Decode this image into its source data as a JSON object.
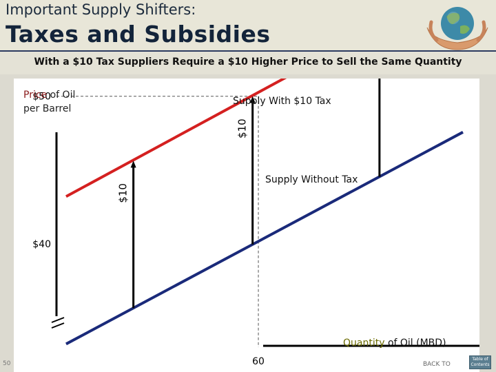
{
  "header": {
    "title_small": "Important Supply Shifters:",
    "title_big": "Taxes and Subsidies"
  },
  "subtitle": "With a $10 Tax Suppliers Require a $10 Higher Price to Sell the Same Quantity",
  "footer": {
    "page_number": "50",
    "back_to": "BACK TO",
    "toc_line1": "Table of",
    "toc_line2": "Contents"
  },
  "colors": {
    "supply_with_tax": "#d42020",
    "supply_without_tax": "#1a2a7a",
    "arrows": "#000000",
    "price_label_accent": "#8a1a1a",
    "quantity_label_accent": "#6b6b00"
  },
  "chart_data": {
    "type": "line",
    "ylabel_accent": "Price",
    "ylabel_rest1": " of Oil",
    "ylabel_rest2": "per Barrel",
    "xlabel_accent": "Quantity",
    "xlabel_rest": " of Oil (MBD)",
    "xlim": [
      49.5,
      71.5
    ],
    "ylim": [
      31.3,
      51.2
    ],
    "y_ticks": [
      {
        "value": 50,
        "label": "$50"
      },
      {
        "value": 40,
        "label": "$40"
      }
    ],
    "x_ticks": [
      {
        "value": 60,
        "label": "60"
      }
    ],
    "series": [
      {
        "name": "Supply With $10 Tax",
        "x": [
          50,
          66
        ],
        "y": [
          43.2,
          54.5
        ],
        "color": "#d42020"
      },
      {
        "name": "Supply Without Tax",
        "x": [
          50,
          75
        ],
        "y": [
          33.2,
          50.6
        ],
        "color": "#1a2a7a"
      }
    ],
    "shifts": [
      {
        "x": 53.5,
        "label": "$10"
      },
      {
        "x": 59.7,
        "label": "$10"
      },
      {
        "x": 66.3,
        "label": "$10"
      }
    ],
    "reference_lines": {
      "price": 50,
      "quantity": 60
    },
    "axis_break": true
  }
}
